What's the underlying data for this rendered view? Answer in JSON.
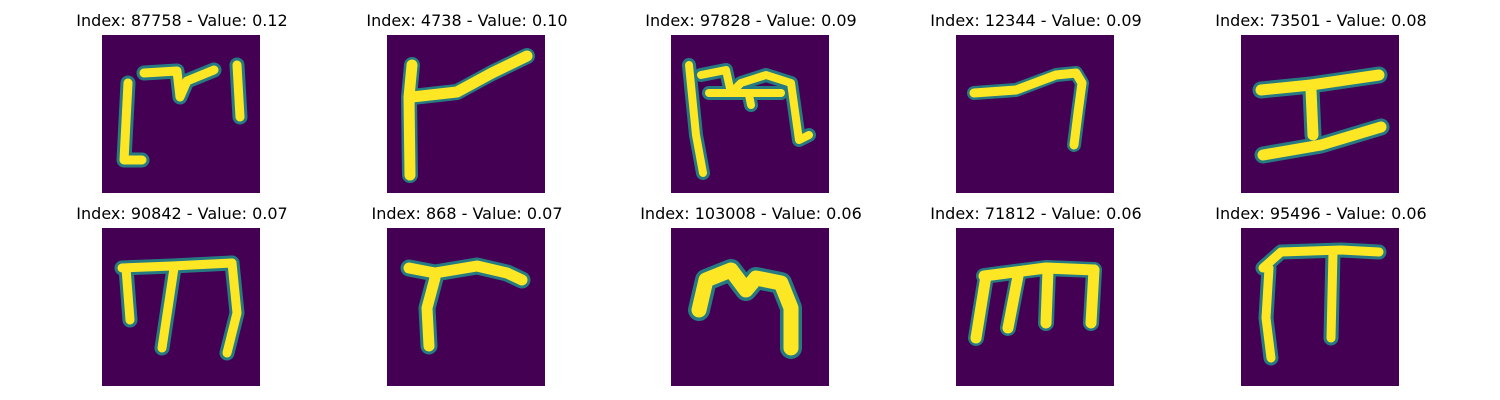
{
  "figure": {
    "colormap": [
      "#440154",
      "#21918c",
      "#5ec962",
      "#fde725"
    ],
    "panels": [
      {
        "index": "87758",
        "value": "0.12",
        "title": "Index: 87758 - Value: 0.12",
        "glyph": "p0-icon"
      },
      {
        "index": "4738",
        "value": "0.10",
        "title": "Index: 4738 - Value: 0.10",
        "glyph": "p1-icon"
      },
      {
        "index": "97828",
        "value": "0.09",
        "title": "Index: 97828 - Value: 0.09",
        "glyph": "p2-icon"
      },
      {
        "index": "12344",
        "value": "0.09",
        "title": "Index: 12344 - Value: 0.09",
        "glyph": "p3-icon"
      },
      {
        "index": "73501",
        "value": "0.08",
        "title": "Index: 73501 - Value: 0.08",
        "glyph": "p4-icon"
      },
      {
        "index": "90842",
        "value": "0.07",
        "title": "Index: 90842 - Value: 0.07",
        "glyph": "p5-icon"
      },
      {
        "index": "868",
        "value": "0.07",
        "title": "Index: 868 - Value: 0.07",
        "glyph": "p6-icon"
      },
      {
        "index": "103008",
        "value": "0.06",
        "title": "Index: 103008 - Value: 0.06",
        "glyph": "p7-icon"
      },
      {
        "index": "71812",
        "value": "0.06",
        "title": "Index: 71812 - Value: 0.06",
        "glyph": "p8-icon"
      },
      {
        "index": "95496",
        "value": "0.06",
        "title": "Index: 95496 - Value: 0.06",
        "glyph": "p9-icon"
      }
    ]
  }
}
